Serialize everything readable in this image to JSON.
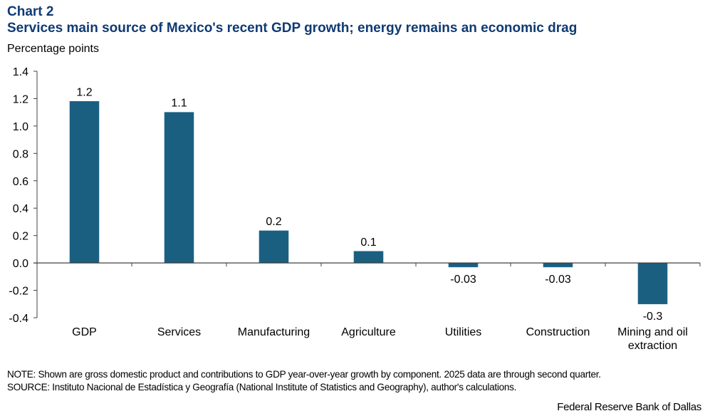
{
  "header": {
    "chart_number": "Chart 2",
    "title": "Services main source of Mexico's recent GDP growth; energy remains an economic drag",
    "y_unit_label": "Percentage points"
  },
  "footer": {
    "note": "NOTE: Shown are gross domestic product and contributions to GDP year-over-year growth by component. 2025 data are through second quarter.",
    "source": "SOURCE: Instituto Nacional de Estadística y Geografía (National Institute of Statistics and Geography), author's calculations.",
    "credit": "Federal Reserve Bank of Dallas"
  },
  "colors": {
    "bar": "#1a5e80",
    "title": "#103a73",
    "axis": "#404040"
  },
  "chart_data": {
    "type": "bar",
    "title": "Services main source of Mexico's recent GDP growth; energy remains an economic drag",
    "xlabel": "",
    "ylabel": "Percentage points",
    "ylim": [
      -0.4,
      1.4
    ],
    "yticks": [
      1.4,
      1.2,
      1.0,
      0.8,
      0.6,
      0.4,
      0.2,
      0.0,
      -0.2,
      -0.4
    ],
    "ytick_labels": [
      "1.4",
      "1.2",
      "1.0",
      "0.8",
      "0.6",
      "0.4",
      "0.2",
      "0.0",
      "-0.2",
      "-0.4"
    ],
    "grid": false,
    "legend": "none",
    "categories": [
      [
        "GDP"
      ],
      [
        "Services"
      ],
      [
        "Manufacturing"
      ],
      [
        "Agriculture"
      ],
      [
        "Utilities"
      ],
      [
        "Construction"
      ],
      [
        "Mining and oil",
        "extraction"
      ]
    ],
    "values": [
      1.18,
      1.1,
      0.235,
      0.085,
      -0.03,
      -0.03,
      -0.3
    ],
    "data_labels": [
      "1.2",
      "1.1",
      "0.2",
      "0.1",
      "-0.03",
      "-0.03",
      "-0.3"
    ]
  }
}
